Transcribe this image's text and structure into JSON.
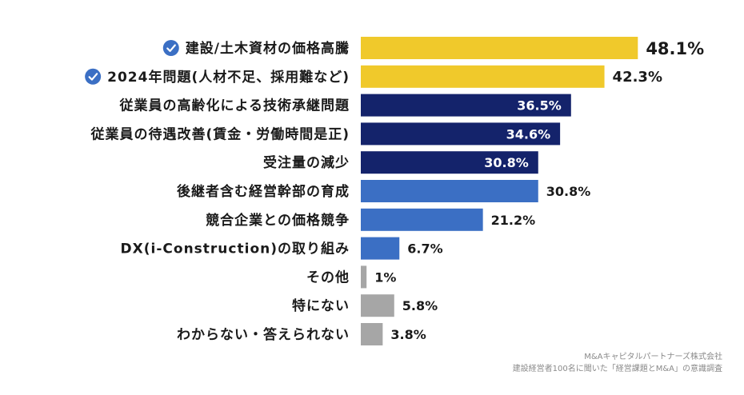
{
  "chart_data": {
    "type": "bar",
    "orientation": "horizontal",
    "unit": "%",
    "xlim": [
      0,
      55
    ],
    "categories": [
      "建設/土木資材の価格高騰",
      "2024年問題(人材不足、採用難など)",
      "従業員の高齢化による技術承継問題",
      "従業員の待遇改善(賃金・労働時間是正)",
      "受注量の減少",
      "後継者含む経営幹部の育成",
      "競合企業との価格競争",
      "DX(i-Construction)の取り組み",
      "その他",
      "特にない",
      "わからない・答えられない"
    ],
    "values": [
      48.1,
      42.3,
      36.5,
      34.6,
      30.8,
      30.8,
      21.2,
      6.7,
      1,
      5.8,
      3.8
    ],
    "value_labels": [
      "48.1%",
      "42.3%",
      "36.5%",
      "34.6%",
      "30.8%",
      "30.8%",
      "21.2%",
      "6.7%",
      "1%",
      "5.8%",
      "3.8%"
    ],
    "colors": [
      "#f0c92b",
      "#f0c92b",
      "#14236b",
      "#14236b",
      "#14236b",
      "#3b6fc4",
      "#3b6fc4",
      "#3b6fc4",
      "#a6a6a6",
      "#a6a6a6",
      "#a6a6a6"
    ],
    "checked": [
      true,
      true,
      false,
      false,
      false,
      false,
      false,
      false,
      false,
      false,
      false
    ],
    "label_inside": [
      false,
      false,
      true,
      true,
      true,
      false,
      false,
      false,
      false,
      false,
      false
    ],
    "check_color": "#3b6fc4"
  },
  "source": {
    "company": "M&Aキャピタルパートナーズ株式会社",
    "survey": "建設経営者100名に聞いた「経営課題とM&A」の意識調査"
  }
}
